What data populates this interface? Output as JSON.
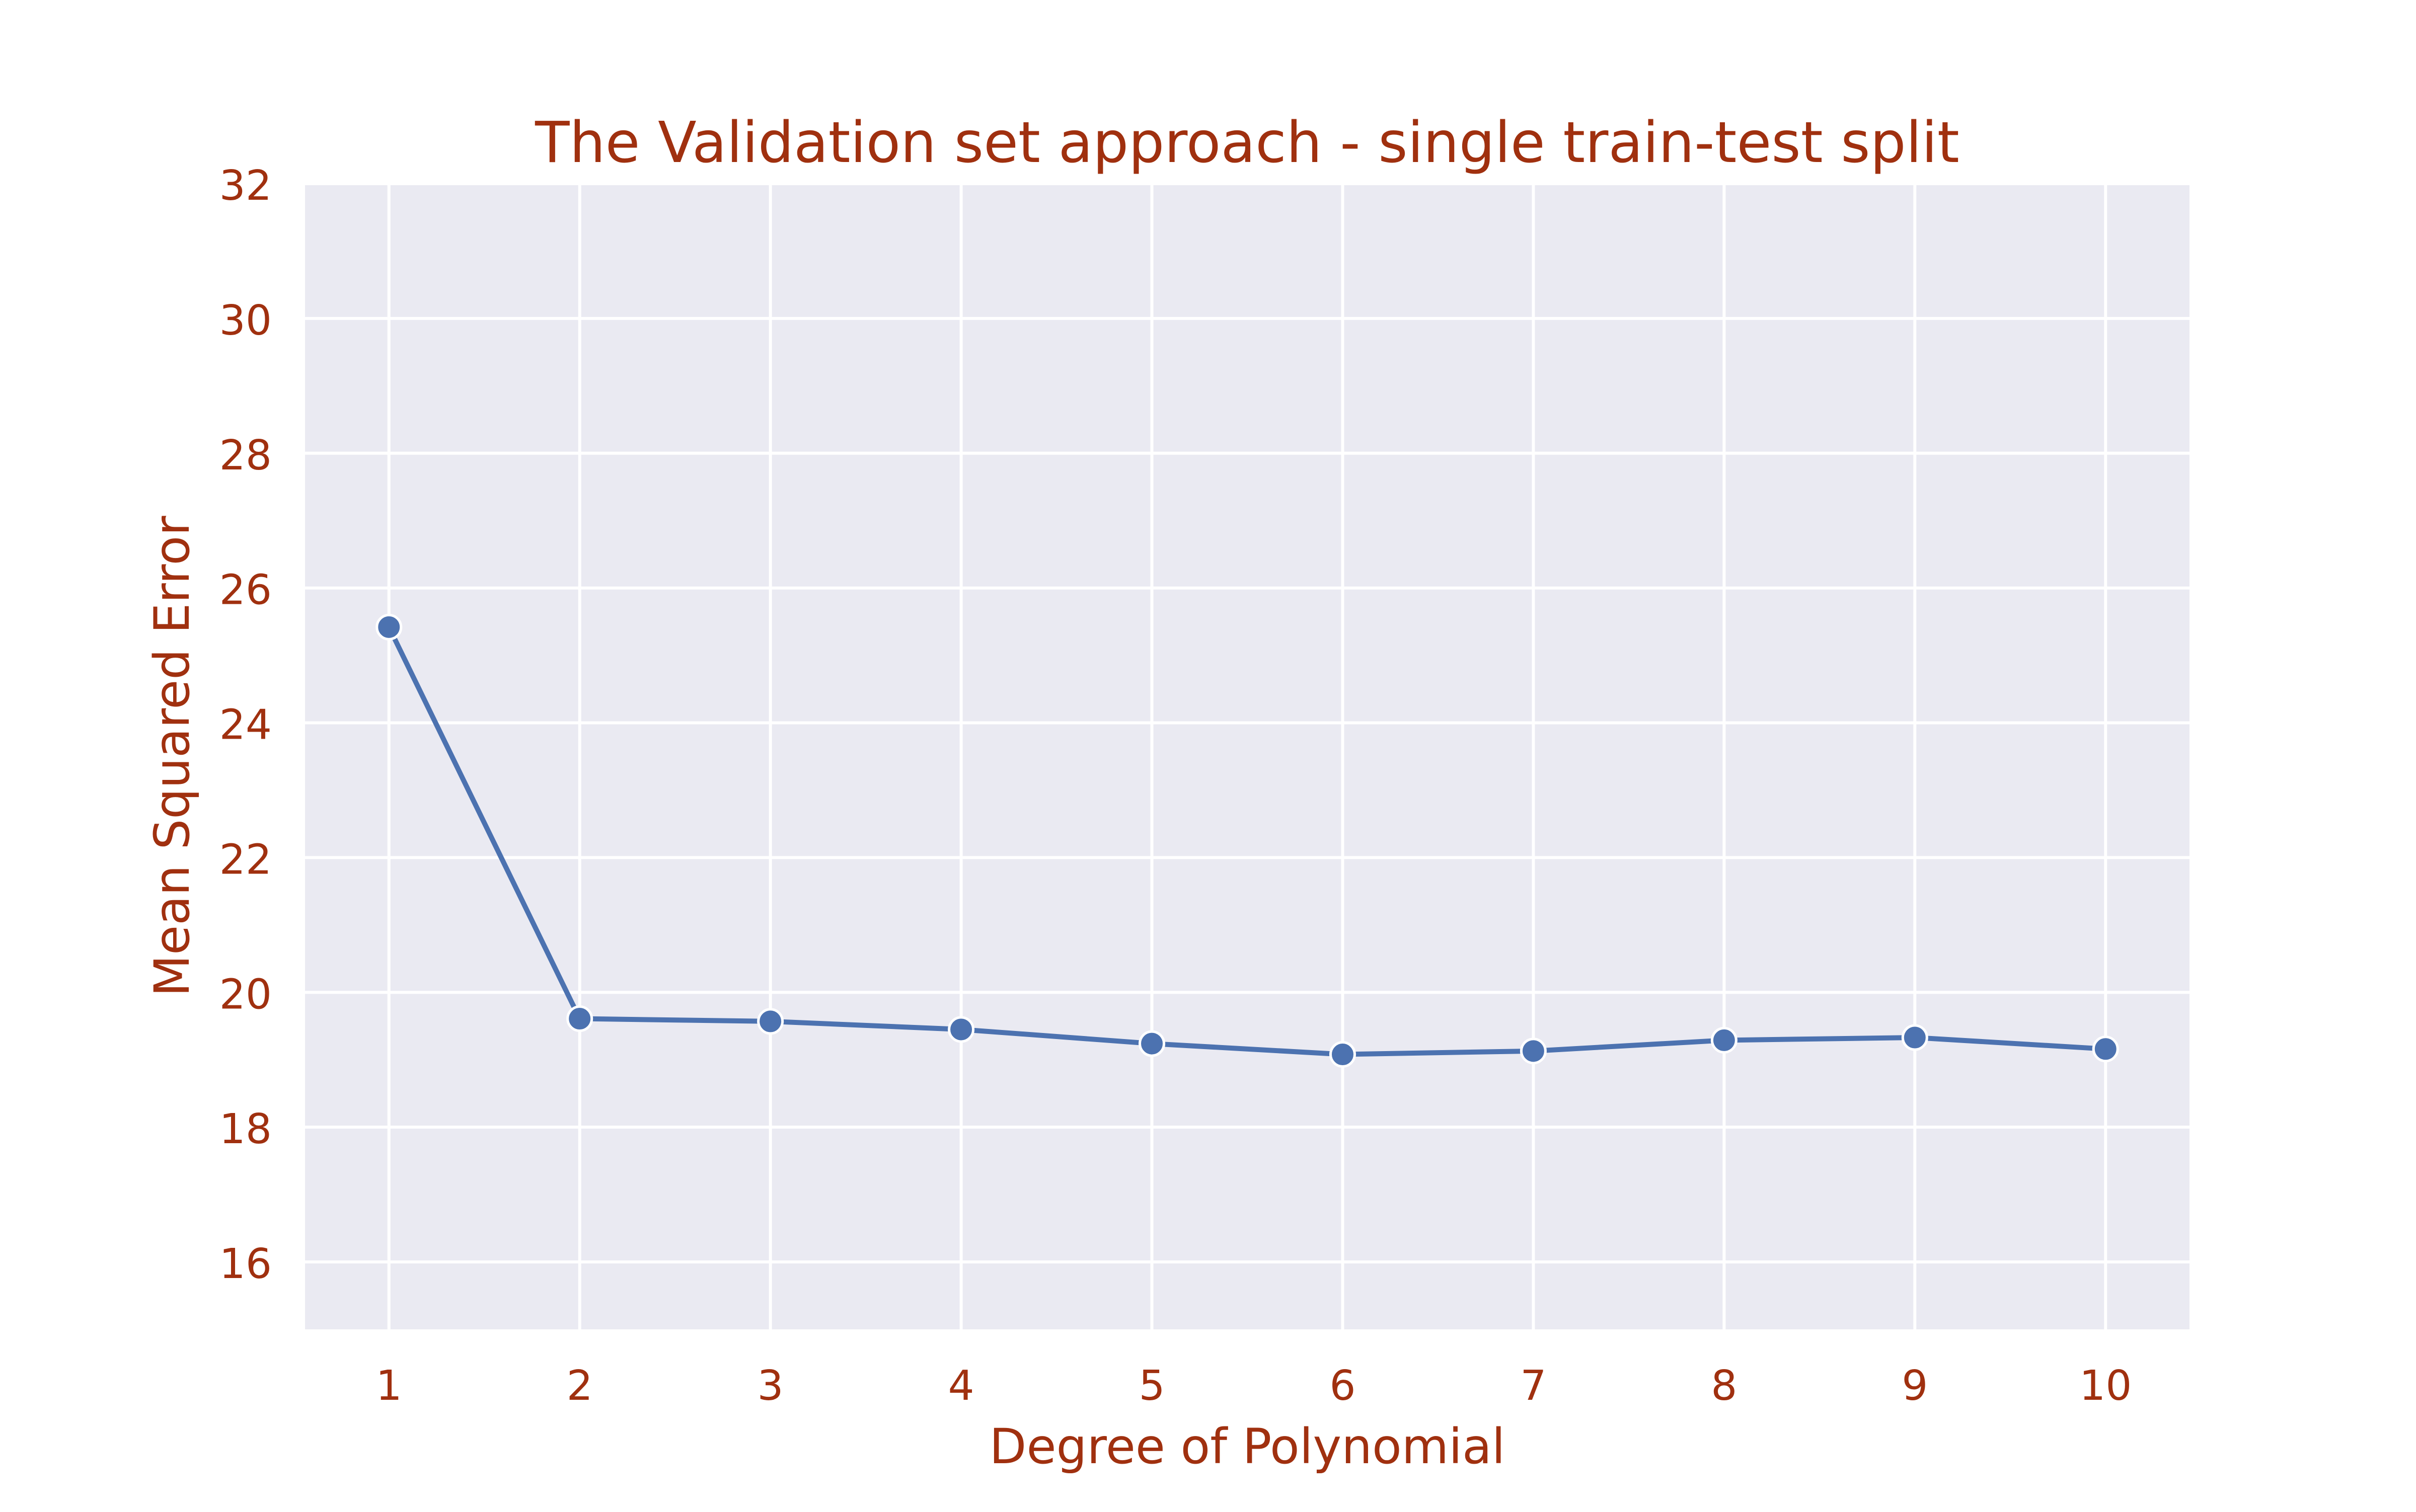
{
  "chart_data": {
    "type": "line",
    "title": "The Validation set approach - single train-test split",
    "xlabel": "Degree of Polynomial",
    "ylabel": "Mean Squared Error",
    "x": [
      1,
      2,
      3,
      4,
      5,
      6,
      7,
      8,
      9,
      10
    ],
    "series": [
      {
        "values": [
          25.42,
          19.61,
          19.57,
          19.45,
          19.24,
          19.08,
          19.13,
          19.29,
          19.33,
          19.16
        ]
      }
    ],
    "xlim": [
      0.56,
      10.44
    ],
    "ylim": [
      15.0,
      32.0
    ],
    "xticks": [
      "1",
      "2",
      "3",
      "4",
      "5",
      "6",
      "7",
      "8",
      "9",
      "10"
    ],
    "yticks": [
      "16",
      "18",
      "20",
      "22",
      "24",
      "26",
      "28",
      "30",
      "32"
    ],
    "grid": true,
    "legend": "none",
    "colors": {
      "background": "#eaeaf2",
      "grid": "#ffffff",
      "line": "#4c72b0",
      "text": "#a0300f"
    }
  }
}
